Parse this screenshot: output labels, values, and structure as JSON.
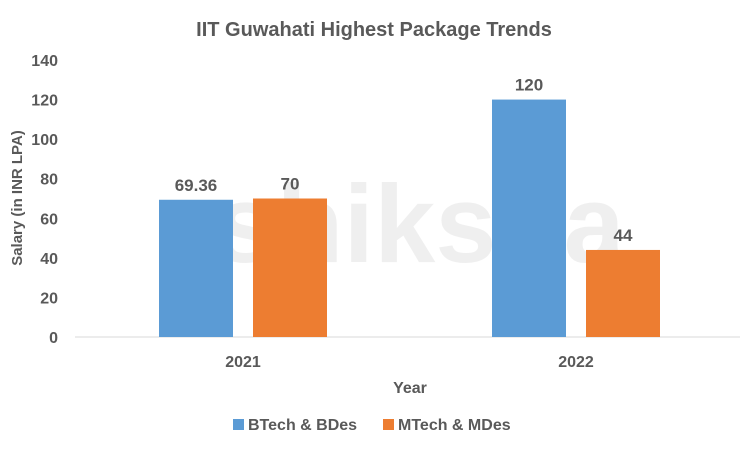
{
  "chart_data": {
    "type": "bar",
    "title": "IIT Guwahati Highest Package Trends",
    "xlabel": "Year",
    "ylabel": "Salary (in INR LPA)",
    "categories": [
      "2021",
      "2022"
    ],
    "series": [
      {
        "name": "BTech & BDes",
        "values": [
          69.36,
          120
        ],
        "labels": [
          "69.36",
          "120"
        ],
        "color": "#5B9BD5"
      },
      {
        "name": "MTech & MDes",
        "values": [
          70,
          44
        ],
        "labels": [
          "70",
          "44"
        ],
        "color": "#ED7D31"
      }
    ],
    "ylim": [
      0,
      140
    ],
    "yticks": [
      "0",
      "20",
      "40",
      "60",
      "80",
      "100",
      "120",
      "140"
    ],
    "grid": false,
    "legend": "bottom",
    "watermark": "shiksha"
  }
}
